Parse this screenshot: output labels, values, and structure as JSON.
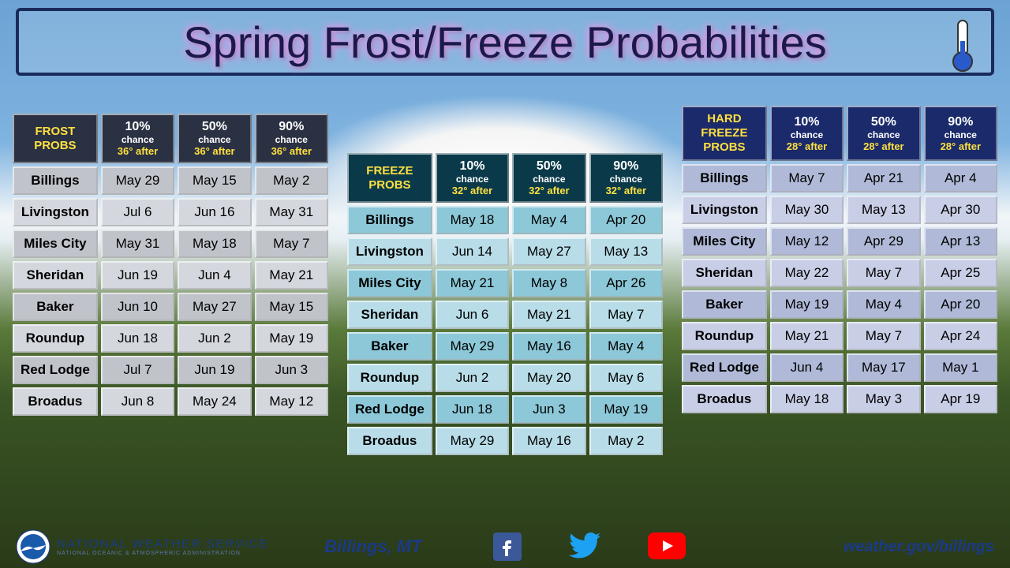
{
  "title": "Spring Frost/Freeze Probabilities",
  "cities": [
    "Billings",
    "Livingston",
    "Miles City",
    "Sheridan",
    "Baker",
    "Roundup",
    "Red Lodge",
    "Broadus"
  ],
  "tables": {
    "frost": {
      "corner": "FROST PROBS",
      "threshold": "36°",
      "cols": [
        "10%",
        "50%",
        "90%"
      ],
      "rows": [
        [
          "May 29",
          "May 15",
          "May 2"
        ],
        [
          "Jul 6",
          "Jun 16",
          "May 31"
        ],
        [
          "May 31",
          "May 18",
          "May 7"
        ],
        [
          "Jun 19",
          "Jun 4",
          "May 21"
        ],
        [
          "Jun 10",
          "May 27",
          "May 15"
        ],
        [
          "Jun 18",
          "Jun 2",
          "May 19"
        ],
        [
          "Jul 7",
          "Jun 19",
          "Jun 3"
        ],
        [
          "Jun 8",
          "May 24",
          "May 12"
        ]
      ],
      "header_bg": "#2a3142",
      "cell_bg_odd": "#c0c4ca",
      "cell_bg_even": "#d4d8de"
    },
    "freeze": {
      "corner": "FREEZE PROBS",
      "threshold": "32°",
      "cols": [
        "10%",
        "50%",
        "90%"
      ],
      "rows": [
        [
          "May 18",
          "May 4",
          "Apr 20"
        ],
        [
          "Jun 14",
          "May 27",
          "May 13"
        ],
        [
          "May 21",
          "May 8",
          "Apr 26"
        ],
        [
          "Jun 6",
          "May 21",
          "May 7"
        ],
        [
          "May 29",
          "May 16",
          "May 4"
        ],
        [
          "Jun 2",
          "May 20",
          "May 6"
        ],
        [
          "Jun 18",
          "Jun 3",
          "May 19"
        ],
        [
          "May 29",
          "May 16",
          "May 2"
        ]
      ],
      "header_bg": "#0a3a4a",
      "cell_bg_odd": "#8cc8d8",
      "cell_bg_even": "#b8dde8"
    },
    "hard": {
      "corner": "HARD FREEZE PROBS",
      "threshold": "28°",
      "cols": [
        "10%",
        "50%",
        "90%"
      ],
      "rows": [
        [
          "May 7",
          "Apr 21",
          "Apr 4"
        ],
        [
          "May 30",
          "May 13",
          "Apr 30"
        ],
        [
          "May 12",
          "Apr 29",
          "Apr 13"
        ],
        [
          "May 22",
          "May 7",
          "Apr 25"
        ],
        [
          "May 19",
          "May 4",
          "Apr 20"
        ],
        [
          "May 21",
          "May 7",
          "Apr 24"
        ],
        [
          "Jun 4",
          "May 17",
          "May 1"
        ],
        [
          "May 18",
          "May 3",
          "Apr 19"
        ]
      ],
      "header_bg": "#1a2a6a",
      "cell_bg_odd": "#b0bad8",
      "cell_bg_even": "#c8cee6"
    }
  },
  "footer": {
    "agency_line1": "NATIONAL WEATHER SERVICE",
    "agency_line2": "NATIONAL OCEANIC & ATMOSPHERIC ADMINISTRATION",
    "office": "Billings, MT",
    "url": "weather.gov/billings"
  },
  "colors": {
    "title_glow": "#e896e8",
    "title_text": "#1a1a4a",
    "banner_border": "#1a2a5a",
    "accent_yellow": "#ffe040",
    "footer_text": "#1a3a8a"
  }
}
